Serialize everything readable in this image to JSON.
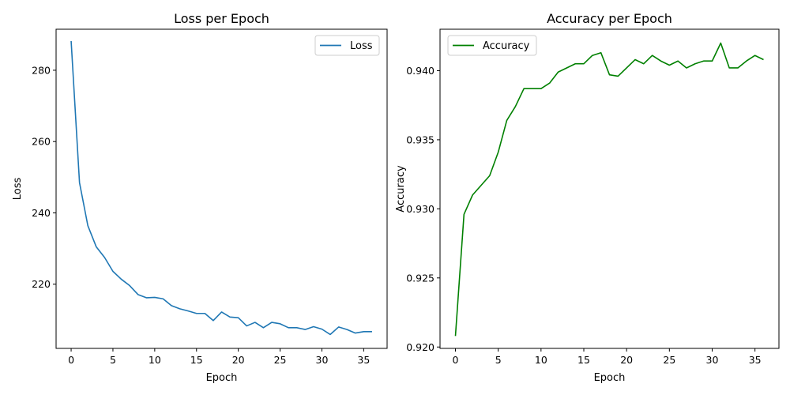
{
  "chart_data": [
    {
      "type": "line",
      "title": "Loss per Epoch",
      "xlabel": "Epoch",
      "ylabel": "Loss",
      "xlim": [
        -1.8,
        37.8
      ],
      "ylim": [
        202,
        291.5
      ],
      "xticks": [
        0,
        5,
        10,
        15,
        20,
        25,
        30,
        35
      ],
      "yticks": [
        220,
        240,
        260,
        280
      ],
      "grid": false,
      "legend": "top-right",
      "color": "#1f77b4",
      "series": [
        {
          "name": "Loss",
          "x": [
            0,
            1,
            2,
            3,
            4,
            5,
            6,
            7,
            8,
            9,
            10,
            11,
            12,
            13,
            14,
            15,
            16,
            17,
            18,
            19,
            20,
            21,
            22,
            23,
            24,
            25,
            26,
            27,
            28,
            29,
            30,
            31,
            32,
            33,
            34,
            35,
            36
          ],
          "y": [
            288.2,
            248.5,
            236.4,
            230.5,
            227.5,
            223.6,
            221.4,
            219.6,
            217.1,
            216.2,
            216.3,
            215.9,
            214.0,
            213.1,
            212.5,
            211.8,
            211.8,
            209.8,
            212.2,
            210.8,
            210.6,
            208.3,
            209.3,
            207.8,
            209.3,
            208.9,
            207.8,
            207.8,
            207.3,
            208.1,
            207.4,
            205.9,
            208.0,
            207.3,
            206.3,
            206.7,
            206.7
          ]
        }
      ]
    },
    {
      "type": "line",
      "title": "Accuracy per Epoch",
      "xlabel": "Epoch",
      "ylabel": "Accuracy",
      "xlim": [
        -1.8,
        37.8
      ],
      "ylim": [
        0.9199,
        0.943
      ],
      "xticks": [
        0,
        5,
        10,
        15,
        20,
        25,
        30,
        35
      ],
      "yticks": [
        "0.920",
        "0.925",
        "0.930",
        "0.935",
        "0.940"
      ],
      "grid": false,
      "legend": "top-left",
      "color": "#008000",
      "series": [
        {
          "name": "Accuracy",
          "x": [
            0,
            1,
            2,
            3,
            4,
            5,
            6,
            7,
            8,
            9,
            10,
            11,
            12,
            13,
            14,
            15,
            16,
            17,
            18,
            19,
            20,
            21,
            22,
            23,
            24,
            25,
            26,
            27,
            28,
            29,
            30,
            31,
            32,
            33,
            34,
            35,
            36
          ],
          "y": [
            0.9208,
            0.9296,
            0.931,
            0.9317,
            0.9324,
            0.9341,
            0.9364,
            0.9374,
            0.9387,
            0.9387,
            0.9387,
            0.9391,
            0.9399,
            0.9402,
            0.9405,
            0.9405,
            0.9411,
            0.9413,
            0.9397,
            0.9396,
            0.9402,
            0.9408,
            0.9405,
            0.9411,
            0.9407,
            0.9404,
            0.9407,
            0.9402,
            0.9405,
            0.9407,
            0.9407,
            0.942,
            0.9402,
            0.9402,
            0.9407,
            0.9411,
            0.9408
          ]
        }
      ]
    }
  ]
}
